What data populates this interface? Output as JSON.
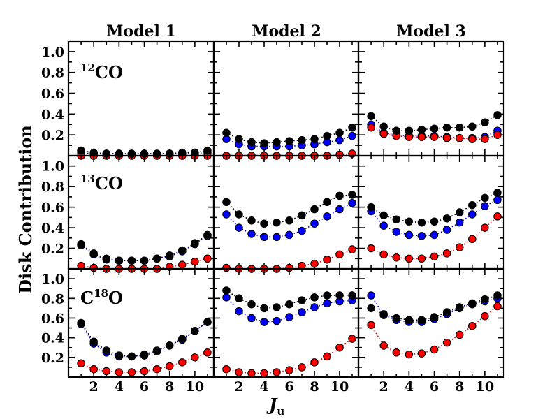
{
  "chart_data": {
    "type": "scatter",
    "layout": "3x3 grid of panels (rows: isotopologue, columns: model)",
    "column_titles": [
      "Model 1",
      "Model 2",
      "Model 3"
    ],
    "row_labels": [
      {
        "superscript": "12",
        "base": "CO",
        "prefix": ""
      },
      {
        "superscript": "13",
        "base": "CO",
        "prefix": ""
      },
      {
        "superscript": "18",
        "base": "O",
        "prefix": "C"
      }
    ],
    "xlabel": {
      "main": "J",
      "sub": "u"
    },
    "ylabel": "Disk Contribution",
    "xlim": [
      0,
      11.5
    ],
    "ylim": [
      0,
      1.1
    ],
    "x_ticks": [
      2,
      4,
      6,
      8,
      10
    ],
    "y_tick_labels": [
      "0.2",
      "0.4",
      "0.6",
      "0.8",
      "1.0"
    ],
    "x": [
      1,
      2,
      3,
      4,
      5,
      6,
      7,
      8,
      9,
      10,
      11
    ],
    "series_colors": {
      "black": "#000000",
      "blue": "#0000ff",
      "red": "#ff0000"
    },
    "panels": [
      [
        {
          "black": [
            0.05,
            0.03,
            0.02,
            0.02,
            0.02,
            0.02,
            0.02,
            0.02,
            0.03,
            0.03,
            0.05
          ],
          "blue": [
            0.03,
            0.02,
            0.02,
            0.02,
            0.02,
            0.02,
            0.02,
            0.02,
            0.02,
            0.02,
            0.03
          ],
          "red": [
            0.0,
            0.0,
            0.0,
            0.0,
            0.0,
            0.0,
            0.0,
            0.0,
            0.0,
            0.0,
            0.0
          ]
        },
        {
          "black": [
            0.22,
            0.16,
            0.13,
            0.12,
            0.13,
            0.14,
            0.15,
            0.16,
            0.19,
            0.22,
            0.27
          ],
          "blue": [
            0.16,
            0.11,
            0.09,
            0.09,
            0.09,
            0.09,
            0.1,
            0.11,
            0.13,
            0.15,
            0.19
          ],
          "red": [
            0.0,
            0.0,
            0.0,
            0.0,
            0.0,
            0.0,
            0.0,
            0.0,
            0.0,
            0.01,
            0.02
          ]
        },
        {
          "black": [
            0.38,
            0.28,
            0.24,
            0.24,
            0.25,
            0.26,
            0.27,
            0.27,
            0.28,
            0.32,
            0.39
          ],
          "blue": [
            0.3,
            0.22,
            0.2,
            0.19,
            0.19,
            0.19,
            0.18,
            0.17,
            0.17,
            0.18,
            0.24
          ],
          "red": [
            0.27,
            0.21,
            0.19,
            0.18,
            0.18,
            0.18,
            0.17,
            0.17,
            0.16,
            0.16,
            0.2
          ]
        }
      ],
      [
        {
          "black": [
            0.24,
            0.15,
            0.1,
            0.08,
            0.08,
            0.08,
            0.1,
            0.13,
            0.18,
            0.25,
            0.33
          ],
          "blue": [
            0.23,
            0.14,
            0.09,
            0.08,
            0.08,
            0.08,
            0.1,
            0.12,
            0.17,
            0.24,
            0.32
          ],
          "red": [
            0.03,
            0.01,
            0.0,
            0.0,
            0.0,
            0.0,
            0.0,
            0.02,
            0.04,
            0.07,
            0.1
          ]
        },
        {
          "black": [
            0.65,
            0.53,
            0.47,
            0.44,
            0.45,
            0.47,
            0.52,
            0.58,
            0.65,
            0.71,
            0.72
          ],
          "blue": [
            0.53,
            0.4,
            0.34,
            0.31,
            0.31,
            0.33,
            0.37,
            0.44,
            0.51,
            0.58,
            0.64
          ],
          "red": [
            0.01,
            0.0,
            0.0,
            0.0,
            0.0,
            0.01,
            0.03,
            0.05,
            0.09,
            0.14,
            0.19
          ]
        },
        {
          "black": [
            0.6,
            0.52,
            0.48,
            0.46,
            0.45,
            0.46,
            0.49,
            0.55,
            0.62,
            0.69,
            0.74
          ],
          "blue": [
            0.56,
            0.42,
            0.36,
            0.33,
            0.32,
            0.33,
            0.38,
            0.45,
            0.53,
            0.61,
            0.67
          ],
          "red": [
            0.2,
            0.14,
            0.11,
            0.1,
            0.1,
            0.12,
            0.15,
            0.21,
            0.29,
            0.4,
            0.51
          ]
        }
      ],
      [
        {
          "black": [
            0.55,
            0.36,
            0.27,
            0.22,
            0.21,
            0.23,
            0.27,
            0.32,
            0.39,
            0.47,
            0.56
          ],
          "blue": [
            0.54,
            0.34,
            0.25,
            0.21,
            0.21,
            0.22,
            0.26,
            0.32,
            0.38,
            0.47,
            0.56
          ],
          "red": [
            0.14,
            0.08,
            0.06,
            0.05,
            0.05,
            0.06,
            0.08,
            0.11,
            0.15,
            0.2,
            0.25
          ]
        },
        {
          "black": [
            0.88,
            0.8,
            0.74,
            0.7,
            0.71,
            0.74,
            0.78,
            0.81,
            0.83,
            0.83,
            0.83
          ],
          "blue": [
            0.81,
            0.67,
            0.6,
            0.56,
            0.57,
            0.61,
            0.66,
            0.71,
            0.75,
            0.77,
            0.78
          ],
          "red": [
            0.08,
            0.05,
            0.04,
            0.04,
            0.05,
            0.07,
            0.1,
            0.15,
            0.21,
            0.3,
            0.39
          ]
        },
        {
          "black": [
            0.7,
            0.64,
            0.6,
            0.58,
            0.58,
            0.61,
            0.66,
            0.71,
            0.75,
            0.79,
            0.83
          ],
          "blue": [
            0.83,
            0.63,
            0.58,
            0.56,
            0.56,
            0.59,
            0.64,
            0.7,
            0.74,
            0.77,
            0.8
          ],
          "red": [
            0.53,
            0.32,
            0.25,
            0.23,
            0.24,
            0.28,
            0.35,
            0.43,
            0.52,
            0.62,
            0.72
          ]
        }
      ]
    ]
  }
}
